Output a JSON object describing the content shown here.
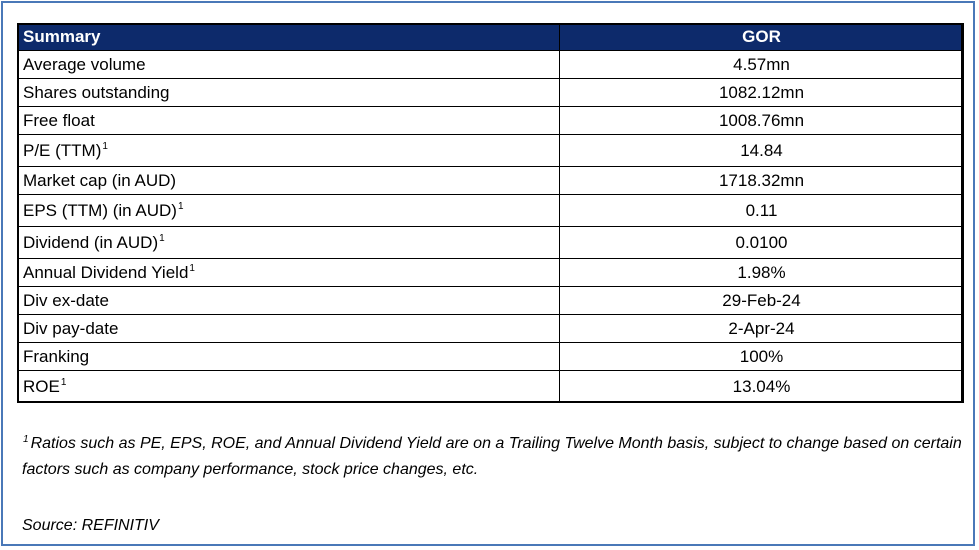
{
  "table": {
    "header_label": "Summary",
    "header_value": "GOR",
    "rows": [
      {
        "label": "Average volume",
        "sup": "",
        "value": "4.57mn"
      },
      {
        "label": "Shares outstanding",
        "sup": "",
        "value": "1082.12mn"
      },
      {
        "label": "Free float",
        "sup": "",
        "value": "1008.76mn"
      },
      {
        "label": "P/E (TTM)",
        "sup": "1",
        "value": "14.84"
      },
      {
        "label": "Market cap (in AUD)",
        "sup": "",
        "value": "1718.32mn"
      },
      {
        "label": "EPS (TTM) (in AUD)",
        "sup": "1",
        "value": "0.11"
      },
      {
        "label": "Dividend (in AUD)",
        "sup": "1",
        "value": "0.0100"
      },
      {
        "label": "Annual Dividend Yield",
        "sup": "1",
        "value": "1.98%"
      },
      {
        "label": "Div ex-date",
        "sup": "",
        "value": "29-Feb-24"
      },
      {
        "label": "Div pay-date",
        "sup": "",
        "value": "2-Apr-24"
      },
      {
        "label": "Franking",
        "sup": "",
        "value": "100%"
      },
      {
        "label": "ROE",
        "sup": "1",
        "value": "13.04%"
      }
    ]
  },
  "footnote": {
    "marker": "1",
    "text": "Ratios such as PE, EPS, ROE, and Annual Dividend Yield are on a Trailing Twelve Month basis, subject to change based on certain factors such as company performance, stock price changes, etc."
  },
  "source": "Source: REFINITIV",
  "colors": {
    "header_bg": "#0d2a6b",
    "header_text": "#ffffff",
    "frame_border": "#4a78b8"
  }
}
